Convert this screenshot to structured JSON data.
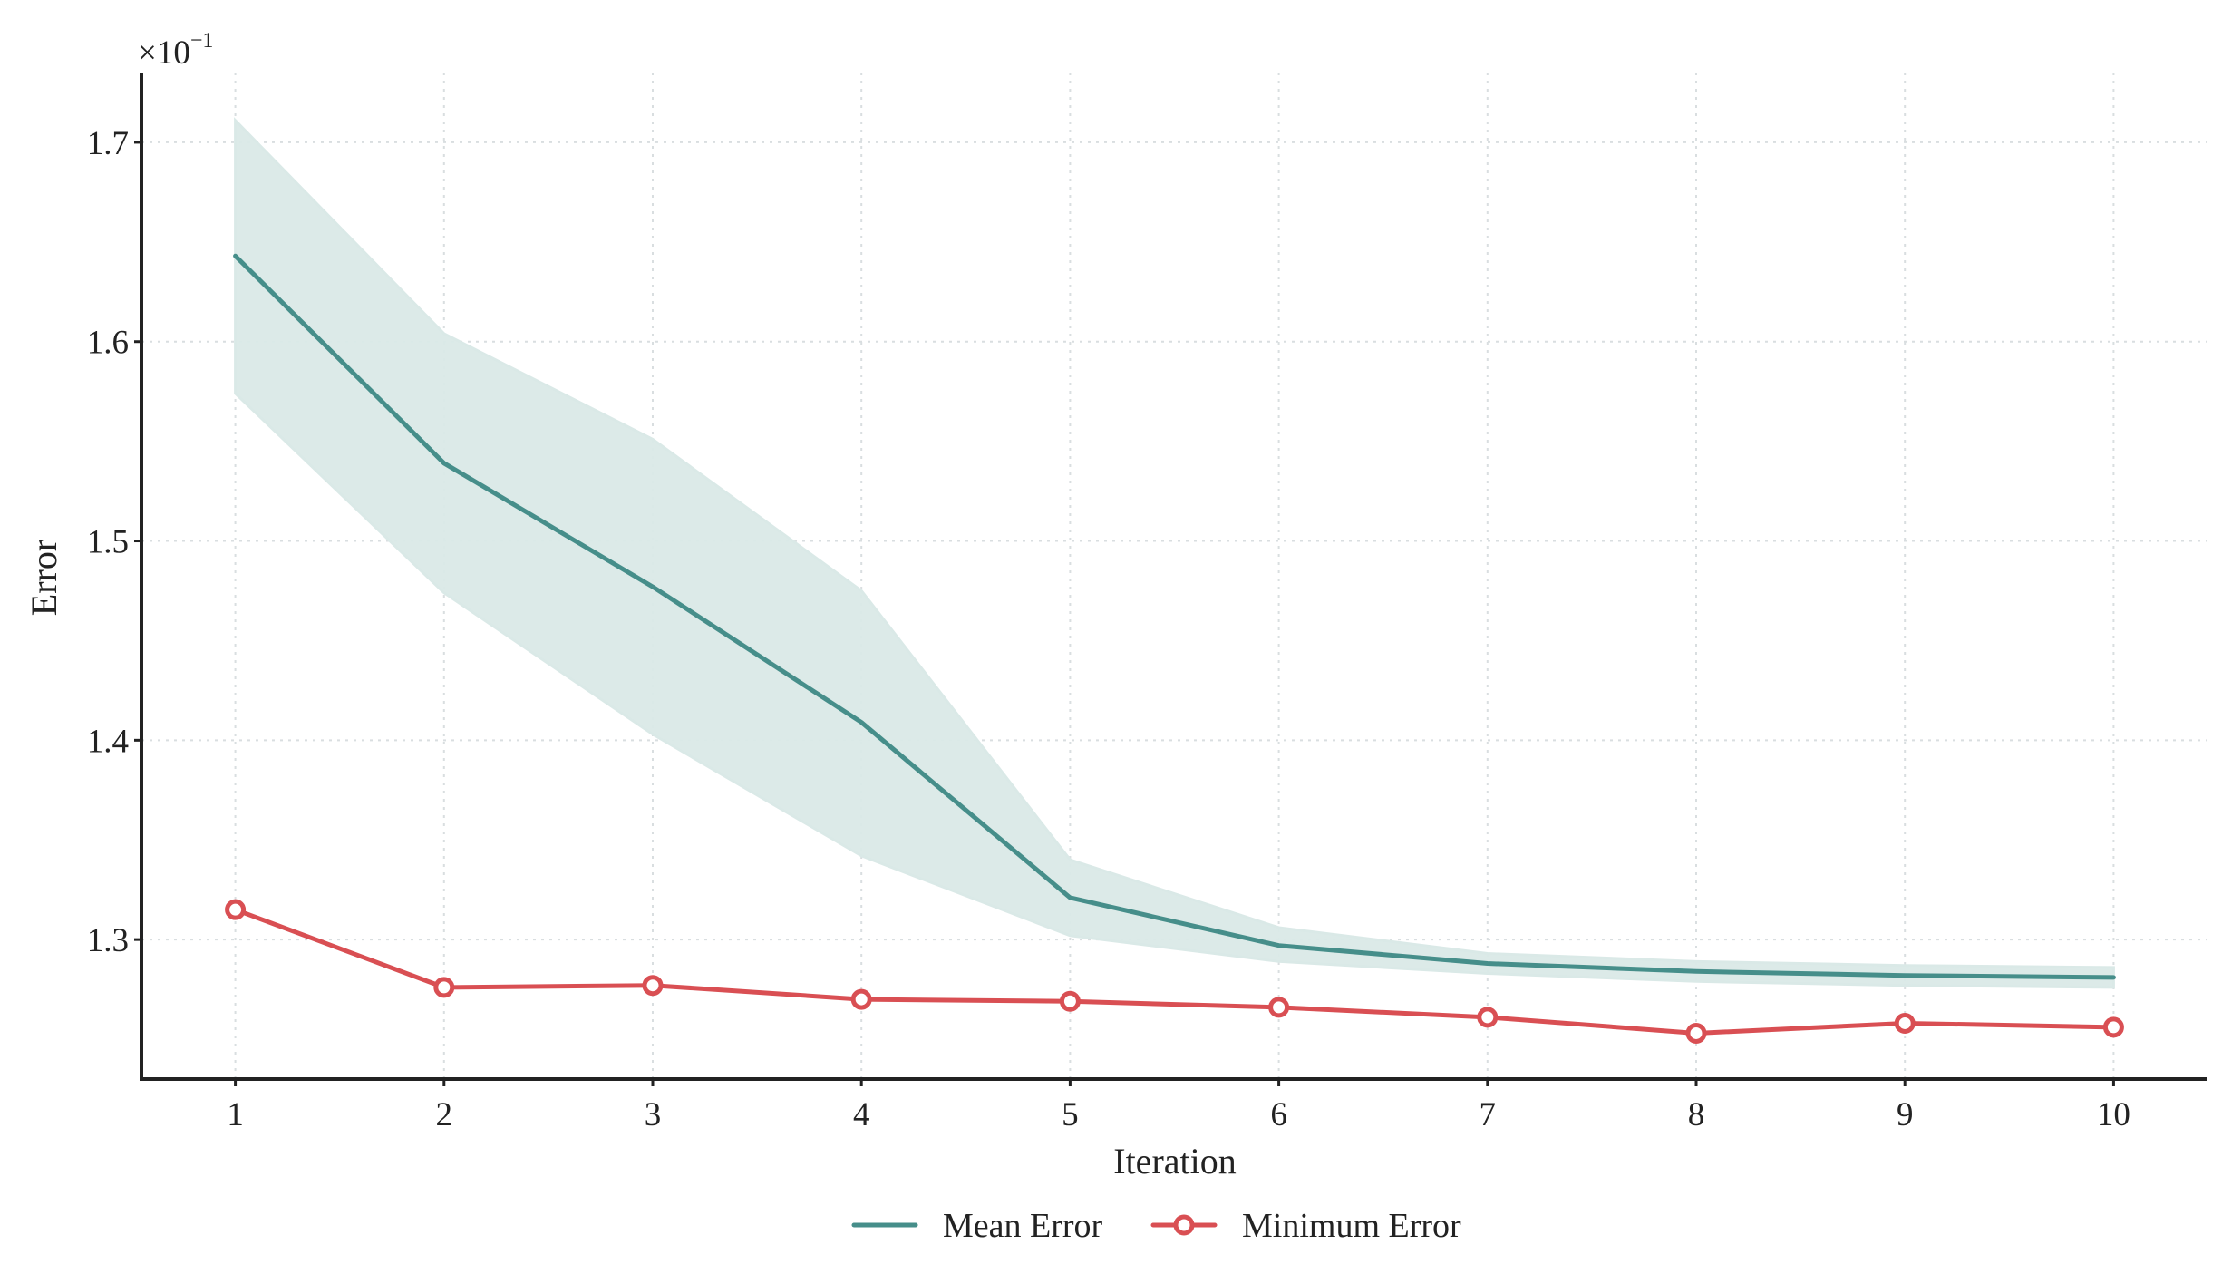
{
  "chart_data": {
    "type": "line",
    "x": [
      1,
      2,
      3,
      4,
      5,
      6,
      7,
      8,
      9,
      10
    ],
    "xlabel": "Iteration",
    "ylabel": "Error",
    "y_scale_label": "×10",
    "y_scale_exponent": "−1",
    "y_scale_factor": 0.1,
    "xlim": [
      0.55,
      10.45
    ],
    "ylim": [
      1.23,
      1.735
    ],
    "xticks": [
      1,
      2,
      3,
      4,
      5,
      6,
      7,
      8,
      9,
      10
    ],
    "xtick_labels": [
      "1",
      "2",
      "3",
      "4",
      "5",
      "6",
      "7",
      "8",
      "9",
      "10"
    ],
    "yticks": [
      1.3,
      1.4,
      1.5,
      1.6,
      1.7
    ],
    "ytick_labels": [
      "1.3",
      "1.4",
      "1.5",
      "1.6",
      "1.7"
    ],
    "grid": true,
    "legend_position": "bottom-center",
    "series": [
      {
        "name": "Mean Error",
        "values": [
          1.643,
          1.539,
          1.477,
          1.409,
          1.321,
          1.297,
          1.288,
          1.284,
          1.282,
          1.281
        ],
        "band_upper": [
          1.711,
          1.604,
          1.551,
          1.475,
          1.34,
          1.306,
          1.293,
          1.289,
          1.287,
          1.286
        ],
        "band_lower": [
          1.574,
          1.474,
          1.403,
          1.342,
          1.302,
          1.289,
          1.283,
          1.279,
          1.277,
          1.276
        ],
        "color": "#468e8a",
        "band_color": "#dae9e7",
        "marker": "none"
      },
      {
        "name": "Minimum Error",
        "values": [
          1.315,
          1.276,
          1.277,
          1.27,
          1.269,
          1.266,
          1.261,
          1.253,
          1.258,
          1.256
        ],
        "color": "#d94f53",
        "marker": "hollow-circle"
      }
    ]
  }
}
